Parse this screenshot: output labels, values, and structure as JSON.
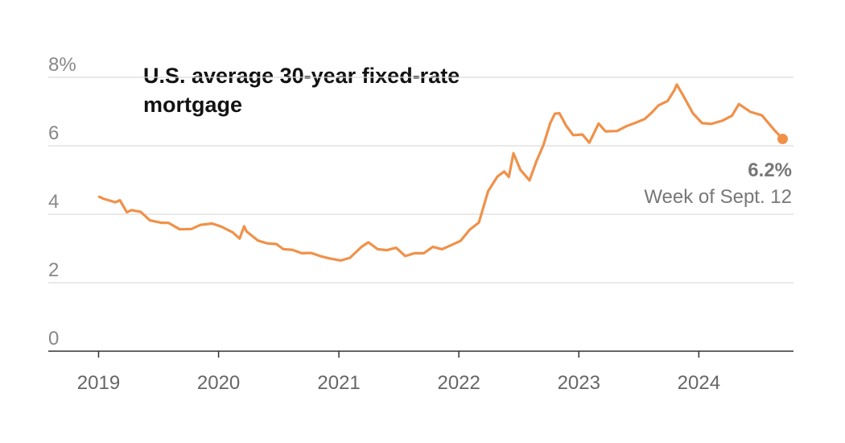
{
  "chart_data": {
    "type": "line",
    "title": "U.S. average 30-year fixed-rate mortgage",
    "xlabel": "",
    "ylabel": "",
    "y_unit": "%",
    "ylim": [
      0,
      8
    ],
    "xlim": [
      "2018-08-01",
      "2024-10-15"
    ],
    "y_ticks": [
      0,
      2,
      4,
      6,
      8
    ],
    "y_tick_labels": [
      "0",
      "2",
      "4",
      "6",
      "8%"
    ],
    "x_ticks": [
      "2019-01-01",
      "2020-01-01",
      "2021-01-01",
      "2022-01-01",
      "2023-01-01",
      "2024-01-01"
    ],
    "x_tick_labels": [
      "2019",
      "2020",
      "2021",
      "2022",
      "2023",
      "2024"
    ],
    "grid": true,
    "line_color": "#f0914a",
    "series": [
      {
        "x": [
          "2019-01-03",
          "2019-01-17",
          "2019-02-21",
          "2019-03-07",
          "2019-03-28",
          "2019-04-11",
          "2019-05-09",
          "2019-06-06",
          "2019-07-11",
          "2019-08-01",
          "2019-09-05",
          "2019-10-10",
          "2019-11-07",
          "2019-12-12",
          "2020-01-09",
          "2020-02-13",
          "2020-03-05",
          "2020-03-19",
          "2020-03-26",
          "2020-04-30",
          "2020-05-28",
          "2020-06-25",
          "2020-07-16",
          "2020-08-13",
          "2020-09-10",
          "2020-10-08",
          "2020-11-05",
          "2020-12-03",
          "2021-01-07",
          "2021-02-04",
          "2021-03-11",
          "2021-04-01",
          "2021-04-29",
          "2021-05-27",
          "2021-06-24",
          "2021-07-22",
          "2021-08-19",
          "2021-09-16",
          "2021-10-14",
          "2021-11-11",
          "2021-12-09",
          "2022-01-06",
          "2022-02-03",
          "2022-03-03",
          "2022-03-31",
          "2022-04-28",
          "2022-05-19",
          "2022-06-02",
          "2022-06-16",
          "2022-07-07",
          "2022-08-04",
          "2022-08-25",
          "2022-09-15",
          "2022-10-06",
          "2022-10-20",
          "2022-11-03",
          "2022-11-24",
          "2022-12-15",
          "2023-01-12",
          "2023-02-02",
          "2023-03-02",
          "2023-03-23",
          "2023-04-27",
          "2023-05-25",
          "2023-06-22",
          "2023-07-20",
          "2023-08-10",
          "2023-08-31",
          "2023-09-28",
          "2023-10-19",
          "2023-10-26",
          "2023-11-16",
          "2023-12-14",
          "2024-01-11",
          "2024-02-08",
          "2024-03-14",
          "2024-04-11",
          "2024-05-02",
          "2024-06-06",
          "2024-07-11",
          "2024-08-15",
          "2024-09-12"
        ],
        "y": [
          4.51,
          4.45,
          4.35,
          4.41,
          4.06,
          4.12,
          4.07,
          3.82,
          3.75,
          3.75,
          3.56,
          3.57,
          3.69,
          3.73,
          3.64,
          3.47,
          3.29,
          3.65,
          3.5,
          3.23,
          3.15,
          3.13,
          2.98,
          2.96,
          2.86,
          2.87,
          2.78,
          2.71,
          2.65,
          2.73,
          3.05,
          3.18,
          2.98,
          2.95,
          3.02,
          2.78,
          2.86,
          2.86,
          3.05,
          2.98,
          3.1,
          3.22,
          3.55,
          3.76,
          4.67,
          5.1,
          5.25,
          5.09,
          5.78,
          5.3,
          4.99,
          5.55,
          6.02,
          6.66,
          6.94,
          6.95,
          6.58,
          6.31,
          6.33,
          6.09,
          6.65,
          6.42,
          6.43,
          6.57,
          6.67,
          6.78,
          6.96,
          7.18,
          7.31,
          7.63,
          7.79,
          7.44,
          6.95,
          6.66,
          6.64,
          6.74,
          6.88,
          7.22,
          6.99,
          6.89,
          6.49,
          6.2
        ]
      }
    ],
    "annotation": {
      "value": "6.2%",
      "note": "Week of Sept. 12"
    }
  }
}
